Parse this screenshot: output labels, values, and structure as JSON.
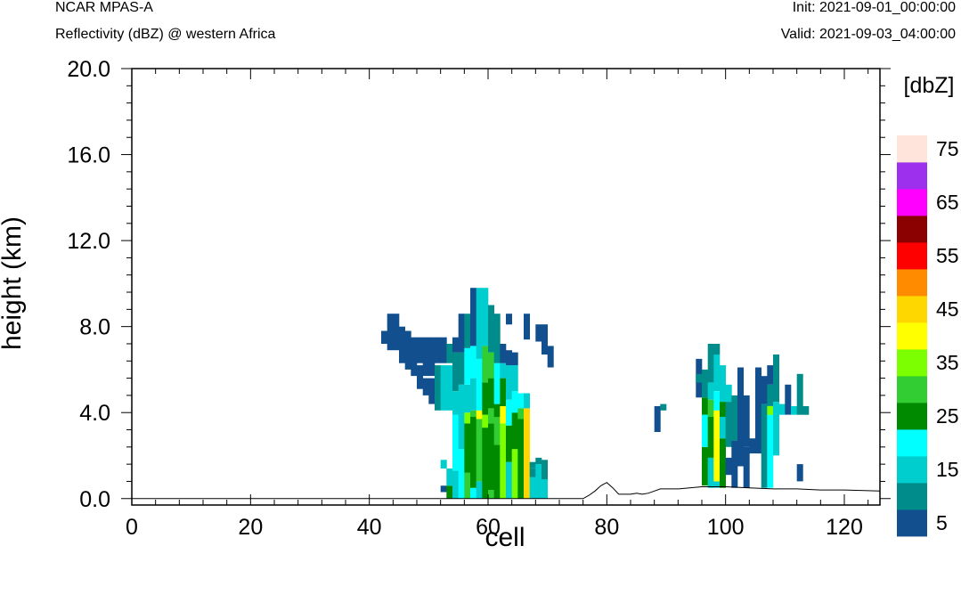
{
  "header": {
    "model": "NCAR MPAS-A",
    "field": "Reflectivity (dBZ) @ western Africa",
    "init": "Init: 2021-09-01_00:00:00",
    "valid": "Valid: 2021-09-03_04:00:00"
  },
  "chart_data": {
    "type": "heatmap",
    "xlabel": "cell",
    "ylabel": "height (km)",
    "xlim": [
      0,
      126
    ],
    "ylim": [
      -0.3,
      20
    ],
    "x_ticks": [
      "0",
      "20",
      "40",
      "60",
      "80",
      "100",
      "120"
    ],
    "x_tick_values": [
      0,
      20,
      40,
      60,
      80,
      100,
      120
    ],
    "y_ticks": [
      "0.0",
      "4.0",
      "8.0",
      "12.0",
      "16.0",
      "20.0"
    ],
    "y_tick_values": [
      0,
      4,
      8,
      12,
      16,
      20
    ],
    "colorbar": {
      "units": "[dbZ]",
      "levels": [
        5,
        10,
        15,
        20,
        25,
        30,
        35,
        40,
        45,
        50,
        55,
        60,
        65,
        70,
        75
      ],
      "labels": [
        "5",
        "15",
        "25",
        "35",
        "45",
        "55",
        "65",
        "75"
      ],
      "colors": [
        "#124f8e",
        "#018c8c",
        "#00cdcd",
        "#00ffff",
        "#008a00",
        "#32cd32",
        "#7cff00",
        "#ffff00",
        "#ffd700",
        "#ff8c00",
        "#ff0000",
        "#8b0000",
        "#ff00ff",
        "#9d30ed",
        "#ffe4dc"
      ]
    },
    "columns": [
      {
        "x": 42,
        "segs": [
          [
            7.2,
            7.8,
            5
          ]
        ]
      },
      {
        "x": 43,
        "segs": [
          [
            6.9,
            8.6,
            5
          ]
        ]
      },
      {
        "x": 44,
        "segs": [
          [
            6.9,
            8.6,
            5
          ]
        ]
      },
      {
        "x": 45,
        "segs": [
          [
            6.3,
            8.0,
            5
          ]
        ]
      },
      {
        "x": 46,
        "segs": [
          [
            6.0,
            7.8,
            5
          ]
        ]
      },
      {
        "x": 47,
        "segs": [
          [
            5.7,
            7.5,
            5
          ]
        ]
      },
      {
        "x": 48,
        "segs": [
          [
            5.1,
            6.2,
            5
          ],
          [
            6.3,
            7.5,
            5
          ]
        ]
      },
      {
        "x": 49,
        "segs": [
          [
            4.8,
            5.6,
            5
          ],
          [
            5.7,
            7.5,
            5
          ]
        ]
      },
      {
        "x": 50,
        "segs": [
          [
            4.4,
            5.6,
            5
          ],
          [
            5.7,
            7.5,
            5
          ]
        ]
      },
      {
        "x": 51,
        "segs": [
          [
            4.1,
            6.2,
            10
          ],
          [
            6.3,
            7.5,
            5
          ]
        ]
      },
      {
        "x": 52,
        "segs": [
          [
            0.3,
            0.6,
            5
          ],
          [
            1.4,
            1.8,
            15
          ],
          [
            4.1,
            6.2,
            15
          ],
          [
            6.3,
            7.5,
            5
          ]
        ]
      },
      {
        "x": 53,
        "segs": [
          [
            0.0,
            0.6,
            25
          ],
          [
            0.6,
            1.4,
            15
          ],
          [
            4.1,
            6.2,
            15
          ],
          [
            6.3,
            7.2,
            10
          ]
        ]
      },
      {
        "x": 54,
        "segs": [
          [
            0.0,
            1.3,
            15
          ],
          [
            1.3,
            3.9,
            20
          ],
          [
            3.9,
            5.0,
            15
          ],
          [
            5.0,
            6.8,
            10
          ],
          [
            6.8,
            7.5,
            5
          ]
        ]
      },
      {
        "x": 55,
        "segs": [
          [
            0.0,
            2.3,
            20
          ],
          [
            2.3,
            3.9,
            15
          ],
          [
            3.9,
            5.3,
            15
          ],
          [
            5.3,
            6.8,
            10
          ],
          [
            6.8,
            8.6,
            5
          ]
        ]
      },
      {
        "x": 56,
        "segs": [
          [
            0.0,
            1.2,
            30
          ],
          [
            1.2,
            3.5,
            25
          ],
          [
            3.5,
            4.0,
            35
          ],
          [
            4.0,
            5.3,
            15
          ],
          [
            5.3,
            7.0,
            20
          ],
          [
            7.0,
            8.6,
            10
          ]
        ]
      },
      {
        "x": 57,
        "segs": [
          [
            0.0,
            0.5,
            20
          ],
          [
            0.5,
            3.8,
            25
          ],
          [
            3.8,
            4.1,
            30
          ],
          [
            4.1,
            5.6,
            15
          ],
          [
            5.6,
            7.1,
            20
          ],
          [
            7.1,
            9.8,
            5
          ]
        ]
      },
      {
        "x": 58,
        "segs": [
          [
            0.0,
            0.8,
            15
          ],
          [
            0.8,
            3.7,
            30
          ],
          [
            3.7,
            4.1,
            40
          ],
          [
            4.1,
            6.5,
            20
          ],
          [
            6.5,
            9.8,
            15
          ]
        ]
      },
      {
        "x": 59,
        "segs": [
          [
            0.0,
            3.3,
            25
          ],
          [
            3.3,
            3.9,
            35
          ],
          [
            3.9,
            5.4,
            25
          ],
          [
            5.4,
            7.1,
            30
          ],
          [
            7.1,
            9.8,
            15
          ]
        ]
      },
      {
        "x": 60,
        "segs": [
          [
            0.0,
            0.4,
            30
          ],
          [
            0.4,
            3.5,
            25
          ],
          [
            3.5,
            4.2,
            30
          ],
          [
            4.2,
            5.6,
            25
          ],
          [
            5.6,
            6.8,
            30
          ],
          [
            6.8,
            9.0,
            10
          ]
        ]
      },
      {
        "x": 61,
        "segs": [
          [
            0.0,
            2.5,
            25
          ],
          [
            2.5,
            3.8,
            30
          ],
          [
            3.8,
            4.4,
            25
          ],
          [
            4.4,
            6.3,
            20
          ],
          [
            6.3,
            8.6,
            10
          ]
        ]
      },
      {
        "x": 62,
        "segs": [
          [
            0.0,
            3.5,
            35
          ],
          [
            3.5,
            4.3,
            40
          ],
          [
            4.3,
            5.6,
            25
          ],
          [
            5.6,
            6.3,
            15
          ],
          [
            6.3,
            7.2,
            5
          ]
        ]
      },
      {
        "x": 63,
        "segs": [
          [
            0.0,
            1.7,
            15
          ],
          [
            1.7,
            3.4,
            25
          ],
          [
            3.4,
            4.6,
            20
          ],
          [
            4.6,
            6.2,
            15
          ],
          [
            6.2,
            6.9,
            5
          ],
          [
            8.1,
            8.6,
            5
          ]
        ]
      },
      {
        "x": 64,
        "segs": [
          [
            0.0,
            2.3,
            35
          ],
          [
            2.3,
            4.0,
            25
          ],
          [
            4.0,
            5.0,
            20
          ],
          [
            5.0,
            6.2,
            15
          ],
          [
            6.2,
            6.8,
            5
          ]
        ]
      },
      {
        "x": 65,
        "segs": [
          [
            0.0,
            3.7,
            25
          ],
          [
            3.7,
            4.2,
            30
          ],
          [
            4.2,
            4.9,
            20
          ]
        ]
      },
      {
        "x": 66,
        "segs": [
          [
            0.0,
            4.2,
            45
          ],
          [
            4.2,
            4.9,
            15
          ]
        ]
      },
      {
        "x": 67,
        "segs": [
          [
            0.0,
            1.0,
            15
          ],
          [
            1.0,
            1.4,
            10
          ],
          [
            1.4,
            1.7,
            10
          ]
        ]
      },
      {
        "x": 68,
        "segs": [
          [
            0.0,
            1.6,
            15
          ],
          [
            1.6,
            1.9,
            10
          ]
        ]
      },
      {
        "x": 69,
        "segs": [
          [
            0.0,
            0.9,
            15
          ],
          [
            0.9,
            1.4,
            10
          ],
          [
            1.4,
            1.8,
            10
          ]
        ]
      },
      {
        "x": 66,
        "segs": [
          [
            7.4,
            8.6,
            5
          ]
        ]
      },
      {
        "x": 68,
        "segs": [
          [
            7.3,
            8.1,
            5
          ]
        ]
      },
      {
        "x": 69,
        "segs": [
          [
            6.7,
            8.1,
            5
          ]
        ]
      },
      {
        "x": 70,
        "segs": [
          [
            6.1,
            7.1,
            5
          ]
        ]
      },
      {
        "x": 88,
        "segs": [
          [
            3.1,
            4.3,
            5
          ]
        ]
      },
      {
        "x": 89,
        "segs": [
          [
            4.1,
            4.4,
            10
          ]
        ]
      },
      {
        "x": 95,
        "segs": [
          [
            4.7,
            6.5,
            5
          ],
          [
            5.4,
            5.8,
            10
          ]
        ]
      },
      {
        "x": 96,
        "segs": [
          [
            0.6,
            2.4,
            25
          ],
          [
            2.4,
            3.9,
            20
          ],
          [
            3.9,
            4.7,
            25
          ],
          [
            4.7,
            6.0,
            10
          ]
        ]
      },
      {
        "x": 97,
        "segs": [
          [
            0.5,
            1.9,
            15
          ],
          [
            1.9,
            3.8,
            25
          ],
          [
            3.8,
            4.6,
            30
          ],
          [
            4.6,
            5.4,
            15
          ],
          [
            5.4,
            7.2,
            10
          ]
        ]
      },
      {
        "x": 98,
        "segs": [
          [
            0.5,
            0.8,
            15
          ],
          [
            0.8,
            4.1,
            40
          ],
          [
            4.1,
            5.0,
            20
          ],
          [
            5.0,
            6.7,
            15
          ],
          [
            6.7,
            7.2,
            10
          ]
        ]
      },
      {
        "x": 99,
        "segs": [
          [
            0.5,
            2.8,
            25
          ],
          [
            2.8,
            3.8,
            15
          ],
          [
            3.8,
            4.5,
            25
          ],
          [
            4.5,
            6.2,
            15
          ]
        ]
      },
      {
        "x": 100,
        "segs": [
          [
            1.1,
            1.9,
            5
          ],
          [
            2.4,
            4.5,
            10
          ],
          [
            4.5,
            5.3,
            15
          ]
        ]
      },
      {
        "x": 101,
        "segs": [
          [
            0.5,
            2.7,
            5
          ],
          [
            2.7,
            4.8,
            10
          ]
        ]
      },
      {
        "x": 102,
        "segs": [
          [
            1.5,
            6.1,
            5
          ]
        ]
      },
      {
        "x": 103,
        "segs": [
          [
            0.5,
            2.4,
            5
          ],
          [
            2.4,
            4.8,
            5
          ]
        ]
      },
      {
        "x": 104,
        "segs": [
          [
            2.1,
            2.8,
            5
          ]
        ]
      },
      {
        "x": 105,
        "segs": [
          [
            2.1,
            6.1,
            5
          ]
        ]
      },
      {
        "x": 106,
        "segs": [
          [
            0.5,
            4.4,
            10
          ],
          [
            4.4,
            5.7,
            5
          ]
        ]
      },
      {
        "x": 107,
        "segs": [
          [
            0.5,
            3.9,
            20
          ],
          [
            3.9,
            4.3,
            35
          ],
          [
            4.3,
            5.3,
            10
          ],
          [
            5.3,
            6.2,
            5
          ]
        ]
      },
      {
        "x": 108,
        "segs": [
          [
            2.0,
            4.5,
            15
          ],
          [
            4.5,
            6.7,
            10
          ]
        ]
      },
      {
        "x": 109,
        "segs": [
          [
            3.9,
            4.4,
            15
          ]
        ]
      },
      {
        "x": 110,
        "segs": [
          [
            3.9,
            5.3,
            5
          ]
        ]
      },
      {
        "x": 111,
        "segs": [
          [
            3.9,
            4.3,
            15
          ]
        ]
      },
      {
        "x": 112,
        "segs": [
          [
            0.8,
            1.6,
            5
          ],
          [
            3.9,
            5.8,
            10
          ]
        ]
      },
      {
        "x": 113,
        "segs": [
          [
            3.9,
            4.3,
            10
          ]
        ]
      }
    ],
    "terrain": [
      [
        0,
        0
      ],
      [
        76,
        0
      ],
      [
        77,
        0.15
      ],
      [
        78,
        0.35
      ],
      [
        79,
        0.6
      ],
      [
        80,
        0.75
      ],
      [
        81,
        0.5
      ],
      [
        82,
        0.2
      ],
      [
        83,
        0.2
      ],
      [
        84,
        0.2
      ],
      [
        85,
        0.25
      ],
      [
        86,
        0.2
      ],
      [
        87,
        0.25
      ],
      [
        88,
        0.35
      ],
      [
        89,
        0.45
      ],
      [
        92,
        0.45
      ],
      [
        96,
        0.55
      ],
      [
        100,
        0.55
      ],
      [
        104,
        0.5
      ],
      [
        108,
        0.45
      ],
      [
        112,
        0.45
      ],
      [
        116,
        0.4
      ],
      [
        120,
        0.4
      ],
      [
        126,
        0.35
      ]
    ]
  }
}
